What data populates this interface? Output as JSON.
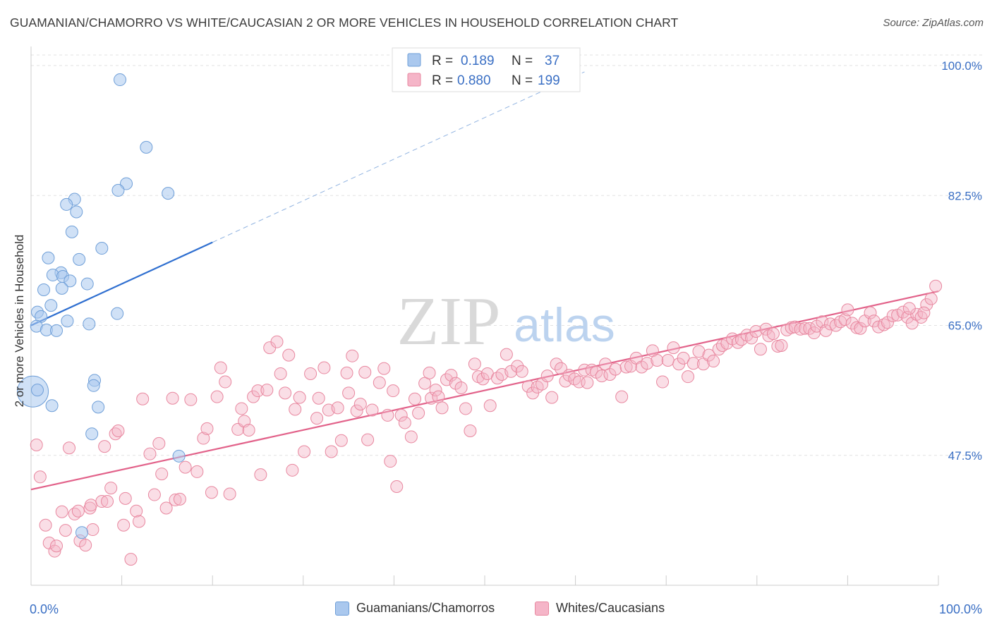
{
  "header": {
    "title": "GUAMANIAN/CHAMORRO VS WHITE/CAUCASIAN 2 OR MORE VEHICLES IN HOUSEHOLD CORRELATION CHART",
    "source": "Source: ZipAtlas.com"
  },
  "watermark": {
    "zip": "ZIP",
    "atlas": "atlas"
  },
  "legend_top": {
    "rows": [
      {
        "r_label": "R =",
        "r_value": "0.189",
        "n_label": "N =",
        "n_value": "37",
        "color": "#aac8ee"
      },
      {
        "r_label": "R =",
        "r_value": "0.880",
        "n_label": "N =",
        "n_value": "199",
        "color": "#f5b5c8"
      }
    ]
  },
  "legend_bottom": {
    "items": [
      {
        "label": "Guamanians/Chamorros",
        "color": "#aac8ee"
      },
      {
        "label": "Whites/Caucasians",
        "color": "#f5b5c8"
      }
    ]
  },
  "colors": {
    "blue_fill": "#aac8ee",
    "blue_stroke": "#6f9fd8",
    "blue_line": "#2f6fd0",
    "pink_fill": "#f5b5c8",
    "pink_stroke": "#e8879f",
    "pink_line": "#e2628a",
    "accent_text": "#3a6fc4"
  },
  "chart_data": {
    "type": "scatter",
    "title": "GUAMANIAN/CHAMORRO VS WHITE/CAUCASIAN 2 OR MORE VEHICLES IN HOUSEHOLD CORRELATION CHART",
    "xlabel": "",
    "ylabel": "2 or more Vehicles in Household",
    "xlim": [
      0,
      100
    ],
    "ylim": [
      30,
      102
    ],
    "x_tick_labels": [
      "0.0%",
      "100.0%"
    ],
    "y_ticks": [
      47.5,
      65.0,
      82.5,
      100.0
    ],
    "y_tick_labels": [
      "47.5%",
      "65.0%",
      "82.5%",
      "100.0%"
    ],
    "grid": true,
    "legend_position": "top-center",
    "series": [
      {
        "name": "Guamanians/Chamorros",
        "r": 0.189,
        "n": 37,
        "trend": {
          "x0": 0,
          "y0": 65.0,
          "x1": 20,
          "y1": 76.2,
          "extend_to_x": 61
        },
        "points": [
          [
            9.8,
            98.1
          ],
          [
            12.7,
            89.0
          ],
          [
            10.5,
            84.1
          ],
          [
            9.6,
            83.2
          ],
          [
            15.1,
            82.8
          ],
          [
            4.8,
            82.0
          ],
          [
            3.9,
            81.3
          ],
          [
            5.0,
            80.3
          ],
          [
            4.5,
            77.6
          ],
          [
            7.8,
            75.4
          ],
          [
            1.9,
            74.1
          ],
          [
            5.3,
            73.9
          ],
          [
            3.3,
            72.1
          ],
          [
            2.4,
            71.8
          ],
          [
            3.5,
            71.6
          ],
          [
            4.3,
            71.0
          ],
          [
            6.2,
            70.6
          ],
          [
            3.4,
            70.0
          ],
          [
            1.4,
            69.8
          ],
          [
            2.2,
            67.7
          ],
          [
            0.7,
            66.8
          ],
          [
            9.5,
            66.6
          ],
          [
            1.1,
            66.2
          ],
          [
            4.0,
            65.6
          ],
          [
            6.4,
            65.2
          ],
          [
            0.6,
            64.9
          ],
          [
            1.7,
            64.4
          ],
          [
            2.8,
            64.3
          ],
          [
            0.2,
            56.1
          ],
          [
            0.7,
            56.3
          ],
          [
            7.0,
            57.6
          ],
          [
            6.9,
            56.9
          ],
          [
            2.3,
            54.2
          ],
          [
            7.4,
            54.0
          ],
          [
            6.7,
            50.4
          ],
          [
            16.3,
            47.4
          ],
          [
            5.6,
            37.1
          ]
        ]
      },
      {
        "name": "Whites/Caucasians",
        "r": 0.88,
        "n": 199,
        "trend": {
          "x0": 0,
          "y0": 42.9,
          "x1": 100,
          "y1": 69.6
        },
        "points": [
          [
            0.6,
            48.9
          ],
          [
            1.0,
            44.6
          ],
          [
            1.6,
            38.1
          ],
          [
            2.0,
            35.7
          ],
          [
            2.6,
            34.6
          ],
          [
            2.8,
            35.3
          ],
          [
            3.4,
            39.9
          ],
          [
            3.8,
            37.4
          ],
          [
            4.2,
            48.5
          ],
          [
            4.8,
            39.6
          ],
          [
            5.2,
            40.0
          ],
          [
            5.4,
            36.0
          ],
          [
            6.0,
            35.4
          ],
          [
            6.5,
            40.4
          ],
          [
            6.6,
            40.8
          ],
          [
            6.8,
            37.5
          ],
          [
            7.8,
            41.3
          ],
          [
            8.1,
            48.7
          ],
          [
            8.4,
            41.3
          ],
          [
            8.8,
            43.1
          ],
          [
            9.3,
            50.4
          ],
          [
            9.6,
            50.8
          ],
          [
            10.2,
            38.1
          ],
          [
            10.4,
            41.7
          ],
          [
            11.0,
            33.5
          ],
          [
            11.6,
            40.0
          ],
          [
            11.9,
            38.6
          ],
          [
            12.3,
            55.1
          ],
          [
            13.1,
            47.7
          ],
          [
            13.6,
            42.2
          ],
          [
            14.1,
            49.1
          ],
          [
            14.4,
            45.0
          ],
          [
            14.9,
            40.4
          ],
          [
            15.6,
            55.2
          ],
          [
            15.9,
            41.5
          ],
          [
            16.4,
            41.6
          ],
          [
            17.0,
            45.9
          ],
          [
            17.6,
            55.0
          ],
          [
            18.3,
            45.3
          ],
          [
            19.0,
            49.8
          ],
          [
            19.4,
            51.1
          ],
          [
            19.9,
            42.5
          ],
          [
            20.5,
            55.4
          ],
          [
            20.9,
            59.3
          ],
          [
            21.4,
            57.4
          ],
          [
            21.9,
            42.3
          ],
          [
            22.8,
            51.0
          ],
          [
            23.2,
            53.8
          ],
          [
            23.5,
            52.1
          ],
          [
            24.0,
            50.9
          ],
          [
            24.5,
            55.4
          ],
          [
            25.0,
            56.2
          ],
          [
            25.3,
            44.9
          ],
          [
            26.0,
            56.3
          ],
          [
            26.3,
            62.0
          ],
          [
            27.1,
            62.8
          ],
          [
            27.5,
            58.5
          ],
          [
            28.0,
            55.9
          ],
          [
            28.4,
            61.0
          ],
          [
            28.8,
            45.5
          ],
          [
            29.1,
            53.7
          ],
          [
            29.6,
            55.3
          ],
          [
            30.1,
            48.0
          ],
          [
            30.8,
            58.5
          ],
          [
            31.5,
            52.5
          ],
          [
            31.7,
            55.2
          ],
          [
            32.3,
            59.3
          ],
          [
            32.8,
            53.6
          ],
          [
            33.1,
            48.0
          ],
          [
            33.8,
            53.9
          ],
          [
            34.2,
            49.5
          ],
          [
            34.8,
            58.6
          ],
          [
            35.0,
            55.9
          ],
          [
            35.4,
            60.9
          ],
          [
            35.9,
            53.5
          ],
          [
            36.3,
            54.4
          ],
          [
            36.8,
            58.7
          ],
          [
            37.1,
            49.6
          ],
          [
            37.6,
            53.6
          ],
          [
            38.4,
            57.3
          ],
          [
            38.9,
            59.2
          ],
          [
            39.3,
            52.9
          ],
          [
            39.6,
            46.7
          ],
          [
            39.9,
            56.2
          ],
          [
            40.3,
            43.3
          ],
          [
            40.8,
            52.9
          ],
          [
            41.2,
            51.9
          ],
          [
            41.9,
            50.0
          ],
          [
            42.3,
            55.1
          ],
          [
            42.7,
            53.2
          ],
          [
            43.4,
            57.2
          ],
          [
            43.9,
            58.6
          ],
          [
            44.1,
            55.2
          ],
          [
            44.6,
            56.3
          ],
          [
            44.9,
            55.4
          ],
          [
            45.3,
            53.9
          ],
          [
            45.8,
            57.7
          ],
          [
            46.3,
            58.3
          ],
          [
            46.8,
            57.2
          ],
          [
            47.4,
            56.6
          ],
          [
            47.9,
            53.8
          ],
          [
            48.4,
            50.8
          ],
          [
            48.9,
            59.8
          ],
          [
            49.3,
            58.1
          ],
          [
            49.8,
            57.8
          ],
          [
            50.3,
            58.5
          ],
          [
            50.6,
            54.2
          ],
          [
            51.4,
            57.9
          ],
          [
            51.9,
            58.4
          ],
          [
            52.4,
            61.1
          ],
          [
            52.9,
            58.8
          ],
          [
            53.6,
            59.5
          ],
          [
            54.1,
            58.8
          ],
          [
            54.8,
            56.8
          ],
          [
            55.3,
            55.9
          ],
          [
            55.8,
            56.7
          ],
          [
            56.3,
            57.1
          ],
          [
            56.9,
            58.2
          ],
          [
            57.4,
            55.3
          ],
          [
            57.9,
            59.8
          ],
          [
            58.4,
            59.2
          ],
          [
            58.9,
            57.5
          ],
          [
            59.3,
            58.3
          ],
          [
            59.9,
            57.8
          ],
          [
            60.4,
            57.4
          ],
          [
            61.0,
            59.0
          ],
          [
            61.3,
            57.3
          ],
          [
            61.8,
            59.0
          ],
          [
            62.3,
            58.7
          ],
          [
            62.9,
            58.2
          ],
          [
            63.3,
            59.8
          ],
          [
            63.8,
            58.4
          ],
          [
            64.4,
            59.1
          ],
          [
            65.1,
            55.4
          ],
          [
            65.6,
            59.4
          ],
          [
            66.1,
            59.5
          ],
          [
            66.7,
            60.6
          ],
          [
            67.3,
            59.4
          ],
          [
            67.9,
            59.9
          ],
          [
            68.5,
            61.6
          ],
          [
            69.0,
            60.3
          ],
          [
            69.6,
            57.4
          ],
          [
            70.2,
            60.3
          ],
          [
            70.8,
            62.0
          ],
          [
            71.4,
            59.8
          ],
          [
            71.9,
            60.6
          ],
          [
            72.4,
            58.1
          ],
          [
            73.0,
            59.9
          ],
          [
            73.6,
            61.5
          ],
          [
            74.1,
            59.8
          ],
          [
            74.7,
            61.0
          ],
          [
            75.2,
            60.2
          ],
          [
            75.8,
            61.8
          ],
          [
            76.2,
            62.3
          ],
          [
            76.7,
            62.6
          ],
          [
            77.3,
            63.2
          ],
          [
            77.9,
            62.7
          ],
          [
            78.3,
            63.1
          ],
          [
            78.9,
            63.7
          ],
          [
            79.4,
            63.3
          ],
          [
            79.9,
            64.2
          ],
          [
            80.4,
            61.8
          ],
          [
            81.0,
            64.5
          ],
          [
            81.3,
            63.6
          ],
          [
            81.8,
            63.9
          ],
          [
            82.3,
            62.2
          ],
          [
            82.7,
            62.3
          ],
          [
            83.3,
            64.4
          ],
          [
            83.8,
            64.7
          ],
          [
            84.2,
            64.8
          ],
          [
            84.8,
            64.5
          ],
          [
            85.3,
            64.6
          ],
          [
            85.8,
            64.6
          ],
          [
            86.3,
            64.0
          ],
          [
            86.6,
            64.9
          ],
          [
            87.2,
            65.5
          ],
          [
            87.6,
            64.3
          ],
          [
            88.1,
            65.2
          ],
          [
            88.7,
            65.0
          ],
          [
            89.2,
            65.5
          ],
          [
            89.7,
            65.8
          ],
          [
            90.0,
            67.1
          ],
          [
            90.5,
            65.3
          ],
          [
            91.0,
            64.7
          ],
          [
            91.4,
            64.6
          ],
          [
            91.9,
            65.6
          ],
          [
            92.5,
            66.7
          ],
          [
            92.9,
            65.6
          ],
          [
            93.4,
            64.8
          ],
          [
            94.0,
            65.1
          ],
          [
            94.4,
            65.4
          ],
          [
            95.0,
            66.3
          ],
          [
            95.5,
            66.4
          ],
          [
            96.1,
            66.8
          ],
          [
            96.6,
            66.1
          ],
          [
            97.1,
            65.3
          ],
          [
            97.6,
            66.5
          ],
          [
            98.1,
            66.1
          ],
          [
            98.7,
            67.8
          ],
          [
            99.2,
            68.6
          ],
          [
            99.7,
            70.3
          ],
          [
            98.4,
            66.7
          ],
          [
            96.8,
            67.3
          ]
        ]
      }
    ]
  }
}
